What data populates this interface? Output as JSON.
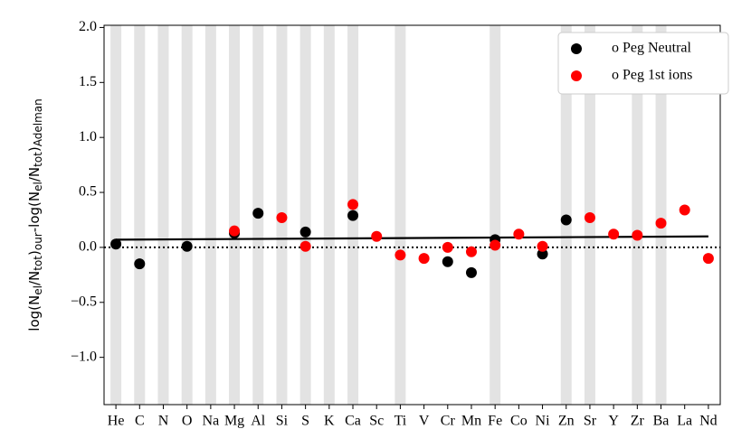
{
  "chart_data": {
    "type": "scatter",
    "y_label": [
      {
        "text": "log(N"
      },
      {
        "text": "el",
        "sub": true
      },
      {
        "text": "/N"
      },
      {
        "text": "tot",
        "sub": true
      },
      {
        "text": ")"
      },
      {
        "text": "our",
        "sub": true
      },
      {
        "text": "-log(N"
      },
      {
        "text": "el",
        "sub": true
      },
      {
        "text": "/N"
      },
      {
        "text": "tot",
        "sub": true
      },
      {
        "text": ")"
      },
      {
        "text": "Adelman",
        "sub": true
      }
    ],
    "categories": [
      "He",
      "C",
      "N",
      "O",
      "Na",
      "Mg",
      "Al",
      "Si",
      "S",
      "K",
      "Ca",
      "Sc",
      "Ti",
      "V",
      "Cr",
      "Mn",
      "Fe",
      "Co",
      "Ni",
      "Zn",
      "Sr",
      "Y",
      "Zr",
      "Ba",
      "La",
      "Nd"
    ],
    "shaded": [
      true,
      true,
      true,
      true,
      true,
      true,
      true,
      true,
      true,
      true,
      true,
      false,
      true,
      false,
      false,
      false,
      true,
      false,
      false,
      true,
      true,
      false,
      true,
      true,
      false,
      false
    ],
    "series": [
      {
        "name": "o Peg Neutral",
        "color": "#000000",
        "values": [
          0.03,
          -0.15,
          null,
          0.01,
          null,
          0.13,
          0.31,
          null,
          0.14,
          null,
          0.29,
          null,
          null,
          null,
          -0.13,
          -0.23,
          0.07,
          null,
          -0.06,
          0.25,
          null,
          null,
          null,
          null,
          null,
          null
        ]
      },
      {
        "name": "o Peg 1st ions",
        "color": "#ff0000",
        "values": [
          null,
          null,
          null,
          null,
          null,
          0.15,
          null,
          0.27,
          0.01,
          null,
          0.39,
          0.1,
          -0.07,
          -0.1,
          0.0,
          -0.04,
          0.02,
          0.12,
          0.01,
          null,
          0.27,
          0.12,
          0.11,
          0.22,
          0.34,
          -0.1
        ]
      }
    ],
    "fit_line": {
      "color": "#000000",
      "values": [
        0.07,
        0.1
      ]
    },
    "reference_line": 0,
    "ylim": [
      -1.43,
      2.02
    ],
    "yticks": [
      {
        "value": -1.0,
        "label": "−1.0"
      },
      {
        "value": -0.5,
        "label": "−0.5"
      },
      {
        "value": 0.0,
        "label": "0.0"
      },
      {
        "value": 0.5,
        "label": "0.5"
      },
      {
        "value": 1.0,
        "label": "1.0"
      },
      {
        "value": 1.5,
        "label": "1.5"
      },
      {
        "value": 2.0,
        "label": "2.0"
      }
    ],
    "legend": "upper right"
  }
}
